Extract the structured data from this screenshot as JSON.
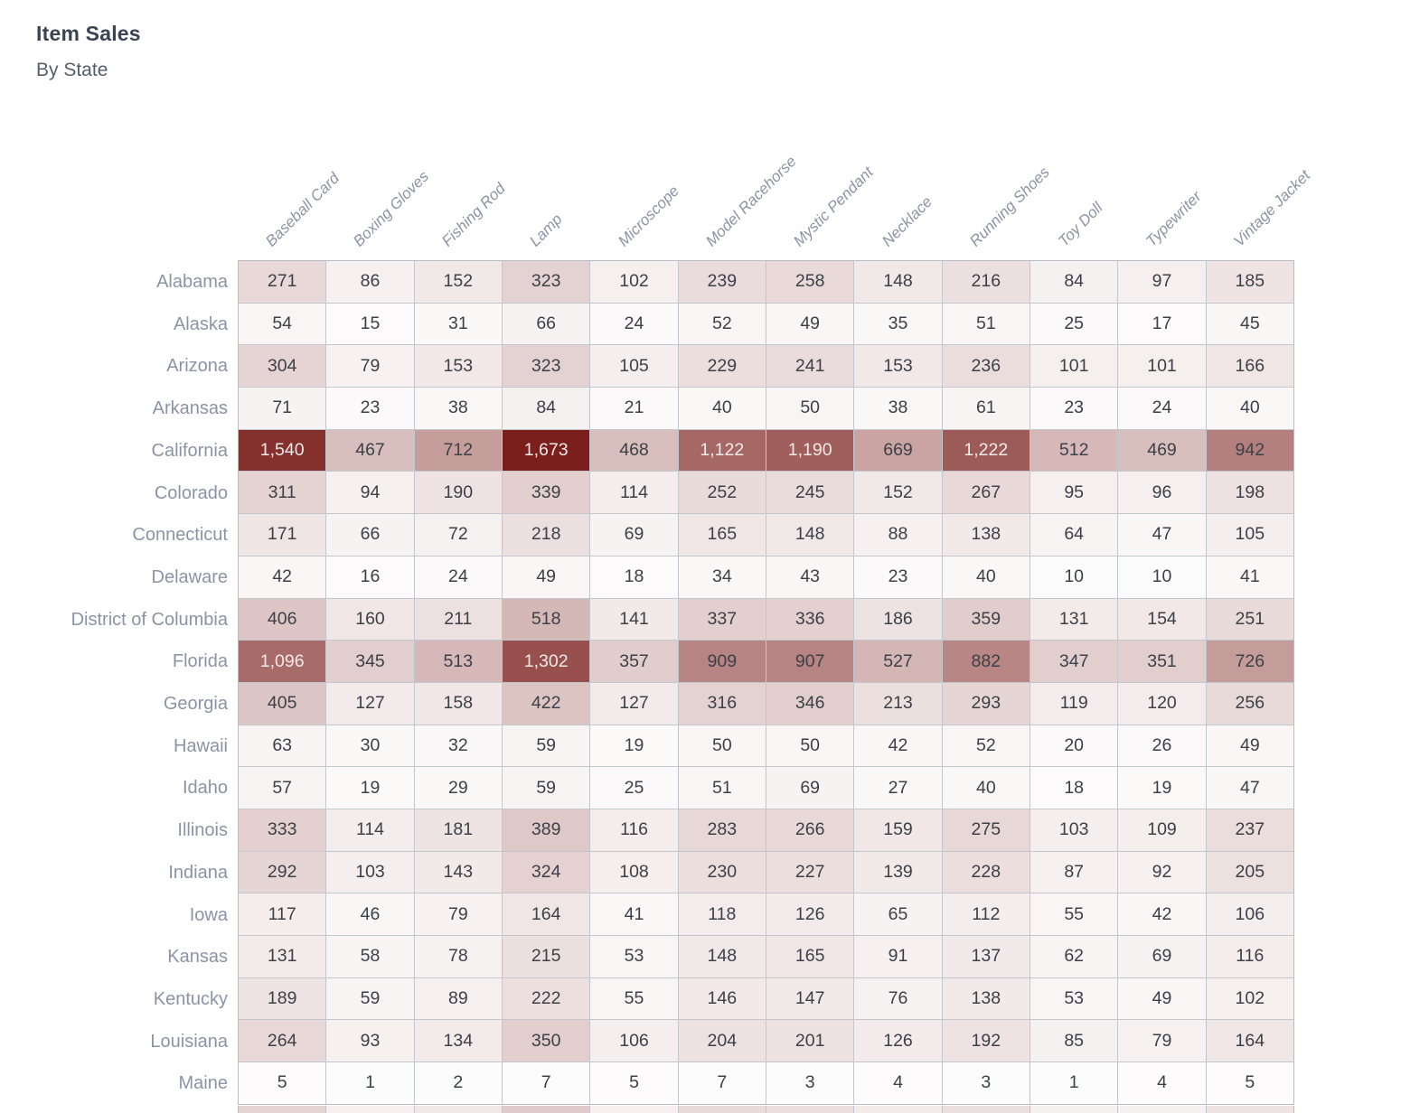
{
  "title": "Item Sales",
  "subtitle": "By State",
  "chart_data": {
    "type": "heatmap",
    "title": "Item Sales",
    "subtitle": "By State",
    "legend_position": "none",
    "columns": [
      "Baseball Card",
      "Boxing Gloves",
      "Fishing Rod",
      "Lamp",
      "Microscope",
      "Model Racehorse",
      "Mystic Pendant",
      "Necklace",
      "Running Shoes",
      "Toy Doll",
      "Typewriter",
      "Vintage Jacket"
    ],
    "rows": [
      {
        "state": "Alabama",
        "values": [
          "271",
          "86",
          "152",
          "323",
          "102",
          "239",
          "258",
          "148",
          "216",
          "84",
          "97",
          "185"
        ]
      },
      {
        "state": "Alaska",
        "values": [
          "54",
          "15",
          "31",
          "66",
          "24",
          "52",
          "49",
          "35",
          "51",
          "25",
          "17",
          "45"
        ]
      },
      {
        "state": "Arizona",
        "values": [
          "304",
          "79",
          "153",
          "323",
          "105",
          "229",
          "241",
          "153",
          "236",
          "101",
          "101",
          "166"
        ]
      },
      {
        "state": "Arkansas",
        "values": [
          "71",
          "23",
          "38",
          "84",
          "21",
          "40",
          "50",
          "38",
          "61",
          "23",
          "24",
          "40"
        ]
      },
      {
        "state": "California",
        "values": [
          "1,540",
          "467",
          "712",
          "1,673",
          "468",
          "1,122",
          "1,190",
          "669",
          "1,222",
          "512",
          "469",
          "942"
        ]
      },
      {
        "state": "Colorado",
        "values": [
          "311",
          "94",
          "190",
          "339",
          "114",
          "252",
          "245",
          "152",
          "267",
          "95",
          "96",
          "198"
        ]
      },
      {
        "state": "Connecticut",
        "values": [
          "171",
          "66",
          "72",
          "218",
          "69",
          "165",
          "148",
          "88",
          "138",
          "64",
          "47",
          "105"
        ]
      },
      {
        "state": "Delaware",
        "values": [
          "42",
          "16",
          "24",
          "49",
          "18",
          "34",
          "43",
          "23",
          "40",
          "10",
          "10",
          "41"
        ]
      },
      {
        "state": "District of Columbia",
        "values": [
          "406",
          "160",
          "211",
          "518",
          "141",
          "337",
          "336",
          "186",
          "359",
          "131",
          "154",
          "251"
        ]
      },
      {
        "state": "Florida",
        "values": [
          "1,096",
          "345",
          "513",
          "1,302",
          "357",
          "909",
          "907",
          "527",
          "882",
          "347",
          "351",
          "726"
        ]
      },
      {
        "state": "Georgia",
        "values": [
          "405",
          "127",
          "158",
          "422",
          "127",
          "316",
          "346",
          "213",
          "293",
          "119",
          "120",
          "256"
        ]
      },
      {
        "state": "Hawaii",
        "values": [
          "63",
          "30",
          "32",
          "59",
          "19",
          "50",
          "50",
          "42",
          "52",
          "20",
          "26",
          "49"
        ]
      },
      {
        "state": "Idaho",
        "values": [
          "57",
          "19",
          "29",
          "59",
          "25",
          "51",
          "69",
          "27",
          "40",
          "18",
          "19",
          "47"
        ]
      },
      {
        "state": "Illinois",
        "values": [
          "333",
          "114",
          "181",
          "389",
          "116",
          "283",
          "266",
          "159",
          "275",
          "103",
          "109",
          "237"
        ]
      },
      {
        "state": "Indiana",
        "values": [
          "292",
          "103",
          "143",
          "324",
          "108",
          "230",
          "227",
          "139",
          "228",
          "87",
          "92",
          "205"
        ]
      },
      {
        "state": "Iowa",
        "values": [
          "117",
          "46",
          "79",
          "164",
          "41",
          "118",
          "126",
          "65",
          "112",
          "55",
          "42",
          "106"
        ]
      },
      {
        "state": "Kansas",
        "values": [
          "131",
          "58",
          "78",
          "215",
          "53",
          "148",
          "165",
          "91",
          "137",
          "62",
          "69",
          "116"
        ]
      },
      {
        "state": "Kentucky",
        "values": [
          "189",
          "59",
          "89",
          "222",
          "55",
          "146",
          "147",
          "76",
          "138",
          "53",
          "49",
          "102"
        ]
      },
      {
        "state": "Louisiana",
        "values": [
          "264",
          "93",
          "134",
          "350",
          "106",
          "204",
          "201",
          "126",
          "192",
          "85",
          "79",
          "164"
        ]
      },
      {
        "state": "Maine",
        "values": [
          "5",
          "1",
          "2",
          "7",
          "5",
          "7",
          "3",
          "4",
          "3",
          "1",
          "4",
          "5"
        ]
      }
    ],
    "value_domain": [
      0,
      1673
    ],
    "colors": {
      "low": "#fdfcfc",
      "high": "#7a1f1b",
      "inverse_text": "#f2eae9",
      "text": "#3c4048",
      "grid_line": "#c2c7cf"
    },
    "inverse_text_min_value": 1000,
    "partial_next_row_tints": [
      0.18,
      0.06,
      0.09,
      0.22,
      0.06,
      0.15,
      0.14,
      0.08,
      0.13,
      0.05,
      0.05,
      0.11
    ]
  }
}
